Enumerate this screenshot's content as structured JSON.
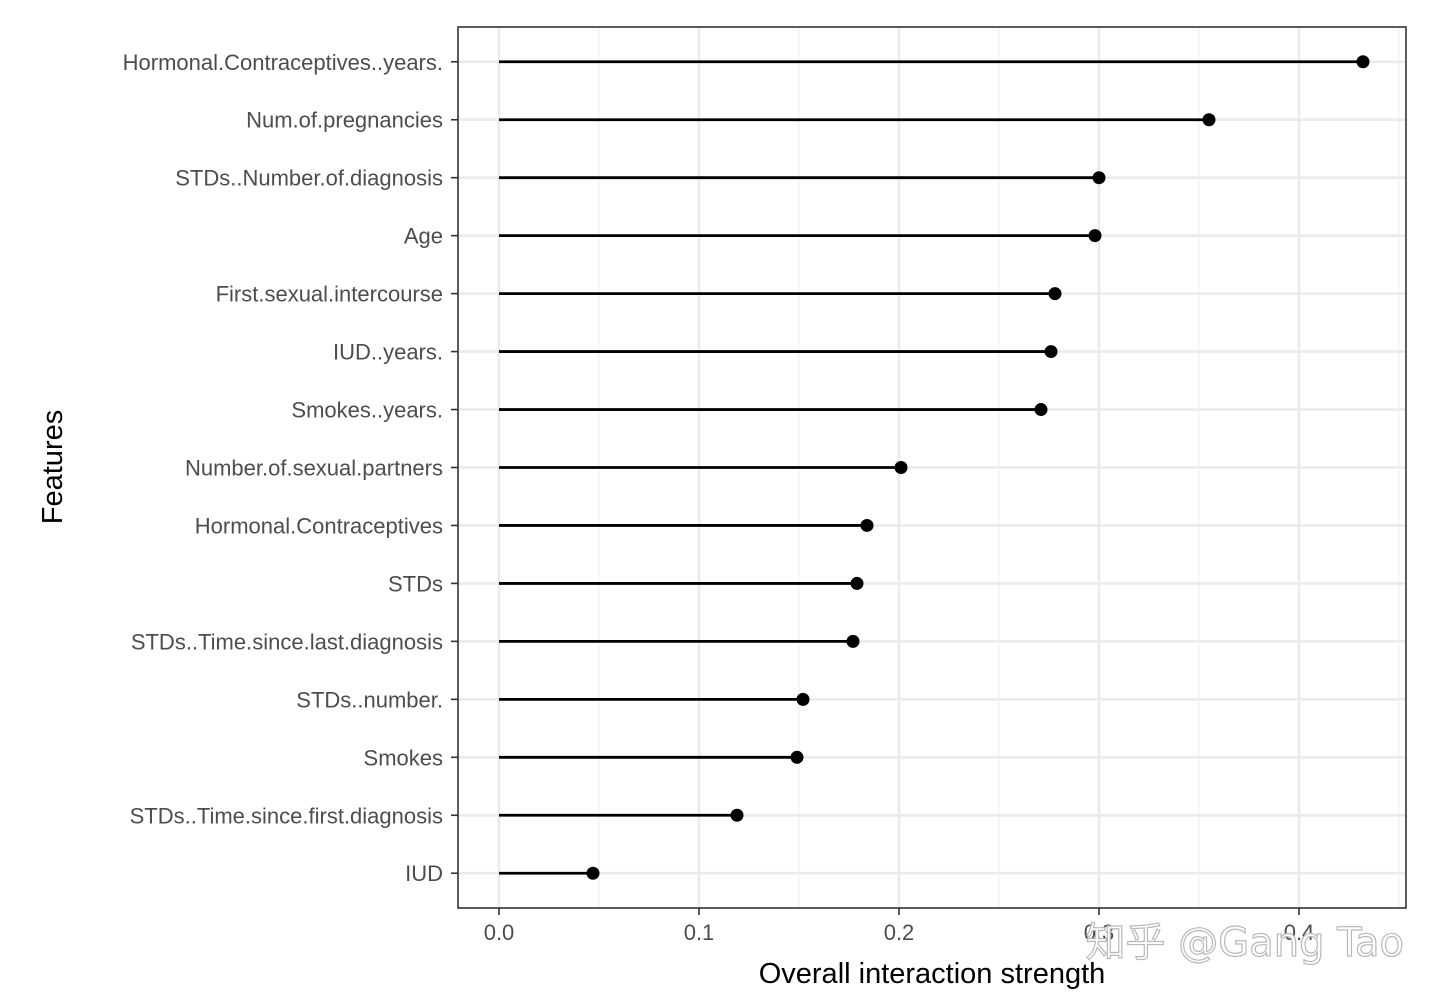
{
  "chart_data": {
    "type": "lollipop",
    "xlabel": "Overall interaction strength",
    "ylabel": "Features",
    "xlim": [
      -0.0205,
      0.4535
    ],
    "x_ticks": [
      0.0,
      0.1,
      0.2,
      0.3,
      0.4
    ],
    "x_tick_labels": [
      "0.0",
      "0.1",
      "0.2",
      "0.3",
      "0.4"
    ],
    "grid": true,
    "categories": [
      "Hormonal.Contraceptives..years.",
      "Num.of.pregnancies",
      "STDs..Number.of.diagnosis",
      "Age",
      "First.sexual.intercourse",
      "IUD..years.",
      "Smokes..years.",
      "Number.of.sexual.partners",
      "Hormonal.Contraceptives",
      "STDs",
      "STDs..Time.since.last.diagnosis",
      "STDs..number.",
      "Smokes",
      "STDs..Time.since.first.diagnosis",
      "IUD"
    ],
    "values": [
      0.432,
      0.355,
      0.3,
      0.298,
      0.278,
      0.276,
      0.271,
      0.201,
      0.184,
      0.179,
      0.177,
      0.152,
      0.149,
      0.119,
      0.047
    ]
  },
  "watermark": "知乎 @Gang Tao"
}
